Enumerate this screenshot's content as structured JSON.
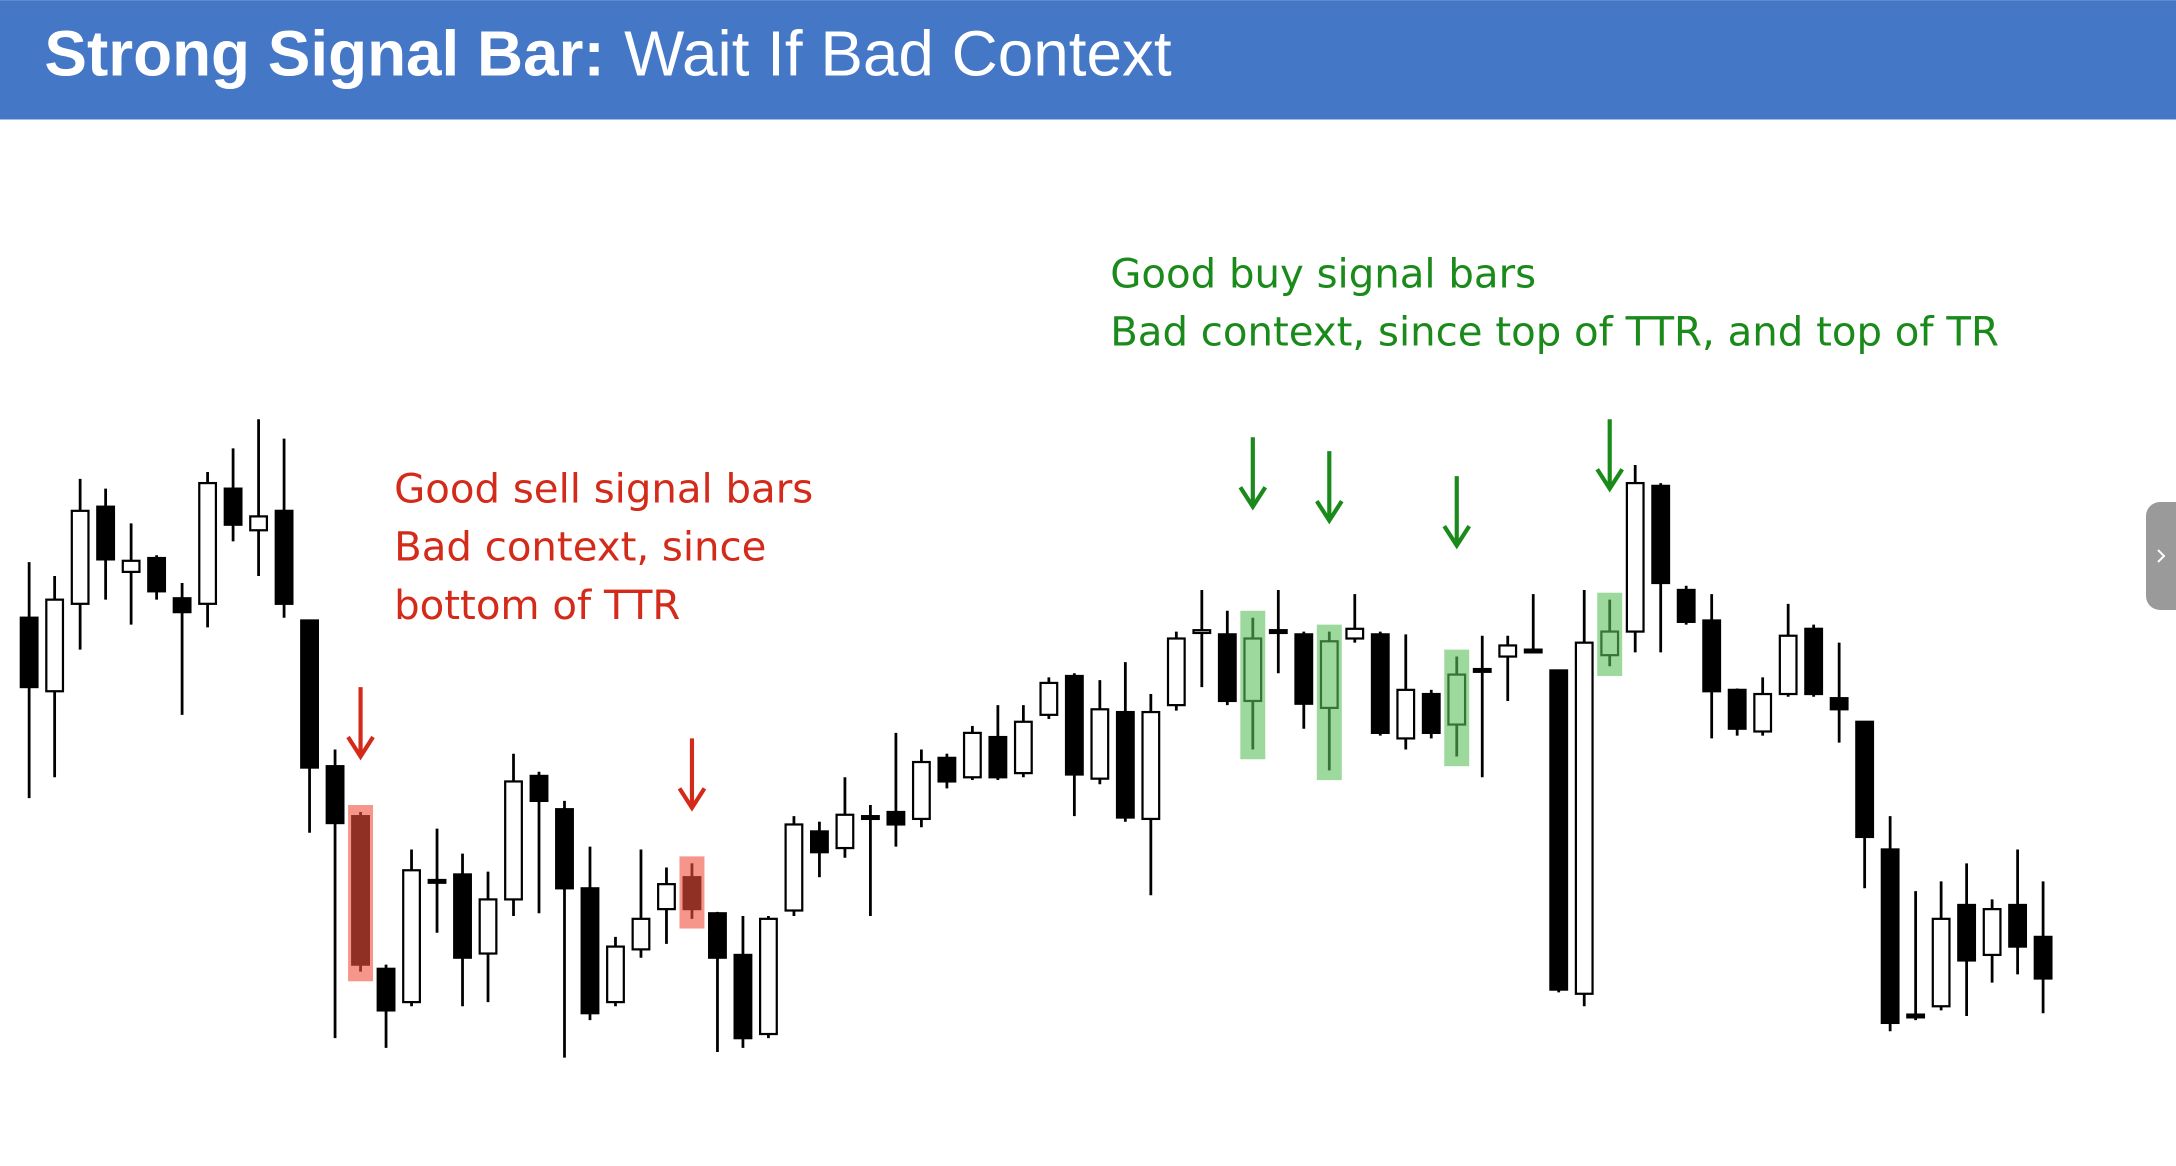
{
  "chart_data": {
    "type": "candlestick",
    "title_bold": "Strong Signal Bar:",
    "title_rest": "Wait If Bad Context",
    "ylim": [
      0,
      520
    ],
    "up_color": "#ffffff",
    "down_color": "#000000",
    "open": [
      355,
      302,
      365,
      435,
      388,
      398,
      369,
      365,
      448,
      418,
      432,
      353,
      248,
      212,
      102,
      78,
      166,
      170,
      113,
      152,
      241,
      217,
      160,
      78,
      116,
      145,
      168,
      142,
      112,
      55,
      144,
      201,
      189,
      212,
      215,
      210,
      254,
      240,
      269,
      243,
      285,
      313,
      239,
      287,
      210,
      292,
      344,
      343,
      295,
      346,
      343,
      290,
      340,
      343,
      268,
      300,
      278,
      318,
      327,
      332,
      317,
      84,
      328,
      345,
      450,
      375,
      353,
      303,
      273,
      300,
      347,
      297,
      280,
      188,
      69,
      75,
      148,
      112,
      148,
      125
    ],
    "high": [
      395,
      385,
      455,
      448,
      423,
      400,
      380,
      460,
      477,
      498,
      484,
      353,
      260,
      215,
      105,
      188,
      203,
      185,
      172,
      257,
      244,
      223,
      190,
      125,
      188,
      175,
      178,
      143,
      140,
      140,
      212,
      208,
      240,
      220,
      272,
      260,
      257,
      277,
      292,
      292,
      312,
      315,
      310,
      323,
      300,
      345,
      375,
      360,
      355,
      375,
      345,
      345,
      372,
      345,
      343,
      303,
      327,
      342,
      342,
      372,
      317,
      375,
      368,
      465,
      452,
      378,
      372,
      304,
      312,
      365,
      350,
      337,
      280,
      212,
      158,
      165,
      178,
      152,
      188,
      165
    ],
    "low": [
      225,
      240,
      332,
      368,
      350,
      368,
      285,
      348,
      410,
      385,
      355,
      200,
      52,
      100,
      45,
      75,
      128,
      75,
      78,
      140,
      142,
      38,
      65,
      75,
      110,
      120,
      138,
      42,
      45,
      52,
      140,
      168,
      182,
      140,
      190,
      204,
      232,
      238,
      238,
      240,
      282,
      212,
      235,
      208,
      155,
      288,
      305,
      292,
      260,
      315,
      275,
      245,
      337,
      270,
      260,
      268,
      255,
      240,
      295,
      330,
      85,
      75,
      320,
      330,
      330,
      350,
      268,
      270,
      270,
      298,
      298,
      265,
      160,
      57,
      65,
      72,
      68,
      92,
      98,
      70
    ],
    "close": [
      305,
      368,
      432,
      397,
      396,
      374,
      359,
      452,
      422,
      428,
      365,
      247,
      207,
      105,
      72,
      173,
      164,
      110,
      152,
      237,
      223,
      160,
      70,
      118,
      138,
      163,
      145,
      110,
      52,
      138,
      206,
      186,
      213,
      210,
      206,
      251,
      237,
      272,
      240,
      280,
      308,
      242,
      289,
      211,
      287,
      340,
      346,
      295,
      340,
      344,
      293,
      338,
      347,
      272,
      303,
      272,
      314,
      316,
      335,
      331,
      87,
      337,
      345,
      452,
      380,
      352,
      302,
      275,
      300,
      342,
      300,
      289,
      197,
      63,
      67,
      138,
      108,
      145,
      118,
      95
    ],
    "highlights": [
      {
        "index": 13,
        "color": "#f0503c"
      },
      {
        "index": 26,
        "color": "#f0503c"
      },
      {
        "index": 48,
        "color": "#5cc05c"
      },
      {
        "index": 51,
        "color": "#5cc05c"
      },
      {
        "index": 56,
        "color": "#5cc05c"
      },
      {
        "index": 62,
        "color": "#5cc05c"
      }
    ],
    "annotations": [
      {
        "color": "#d42a1a",
        "lines": [
          "Good sell signal bars",
          "Bad context, since",
          "bottom of TTR"
        ]
      },
      {
        "color": "#1a8a1a",
        "lines": [
          "Good buy signal bars",
          "Bad context, since top of TTR, and top of TR"
        ]
      }
    ]
  }
}
